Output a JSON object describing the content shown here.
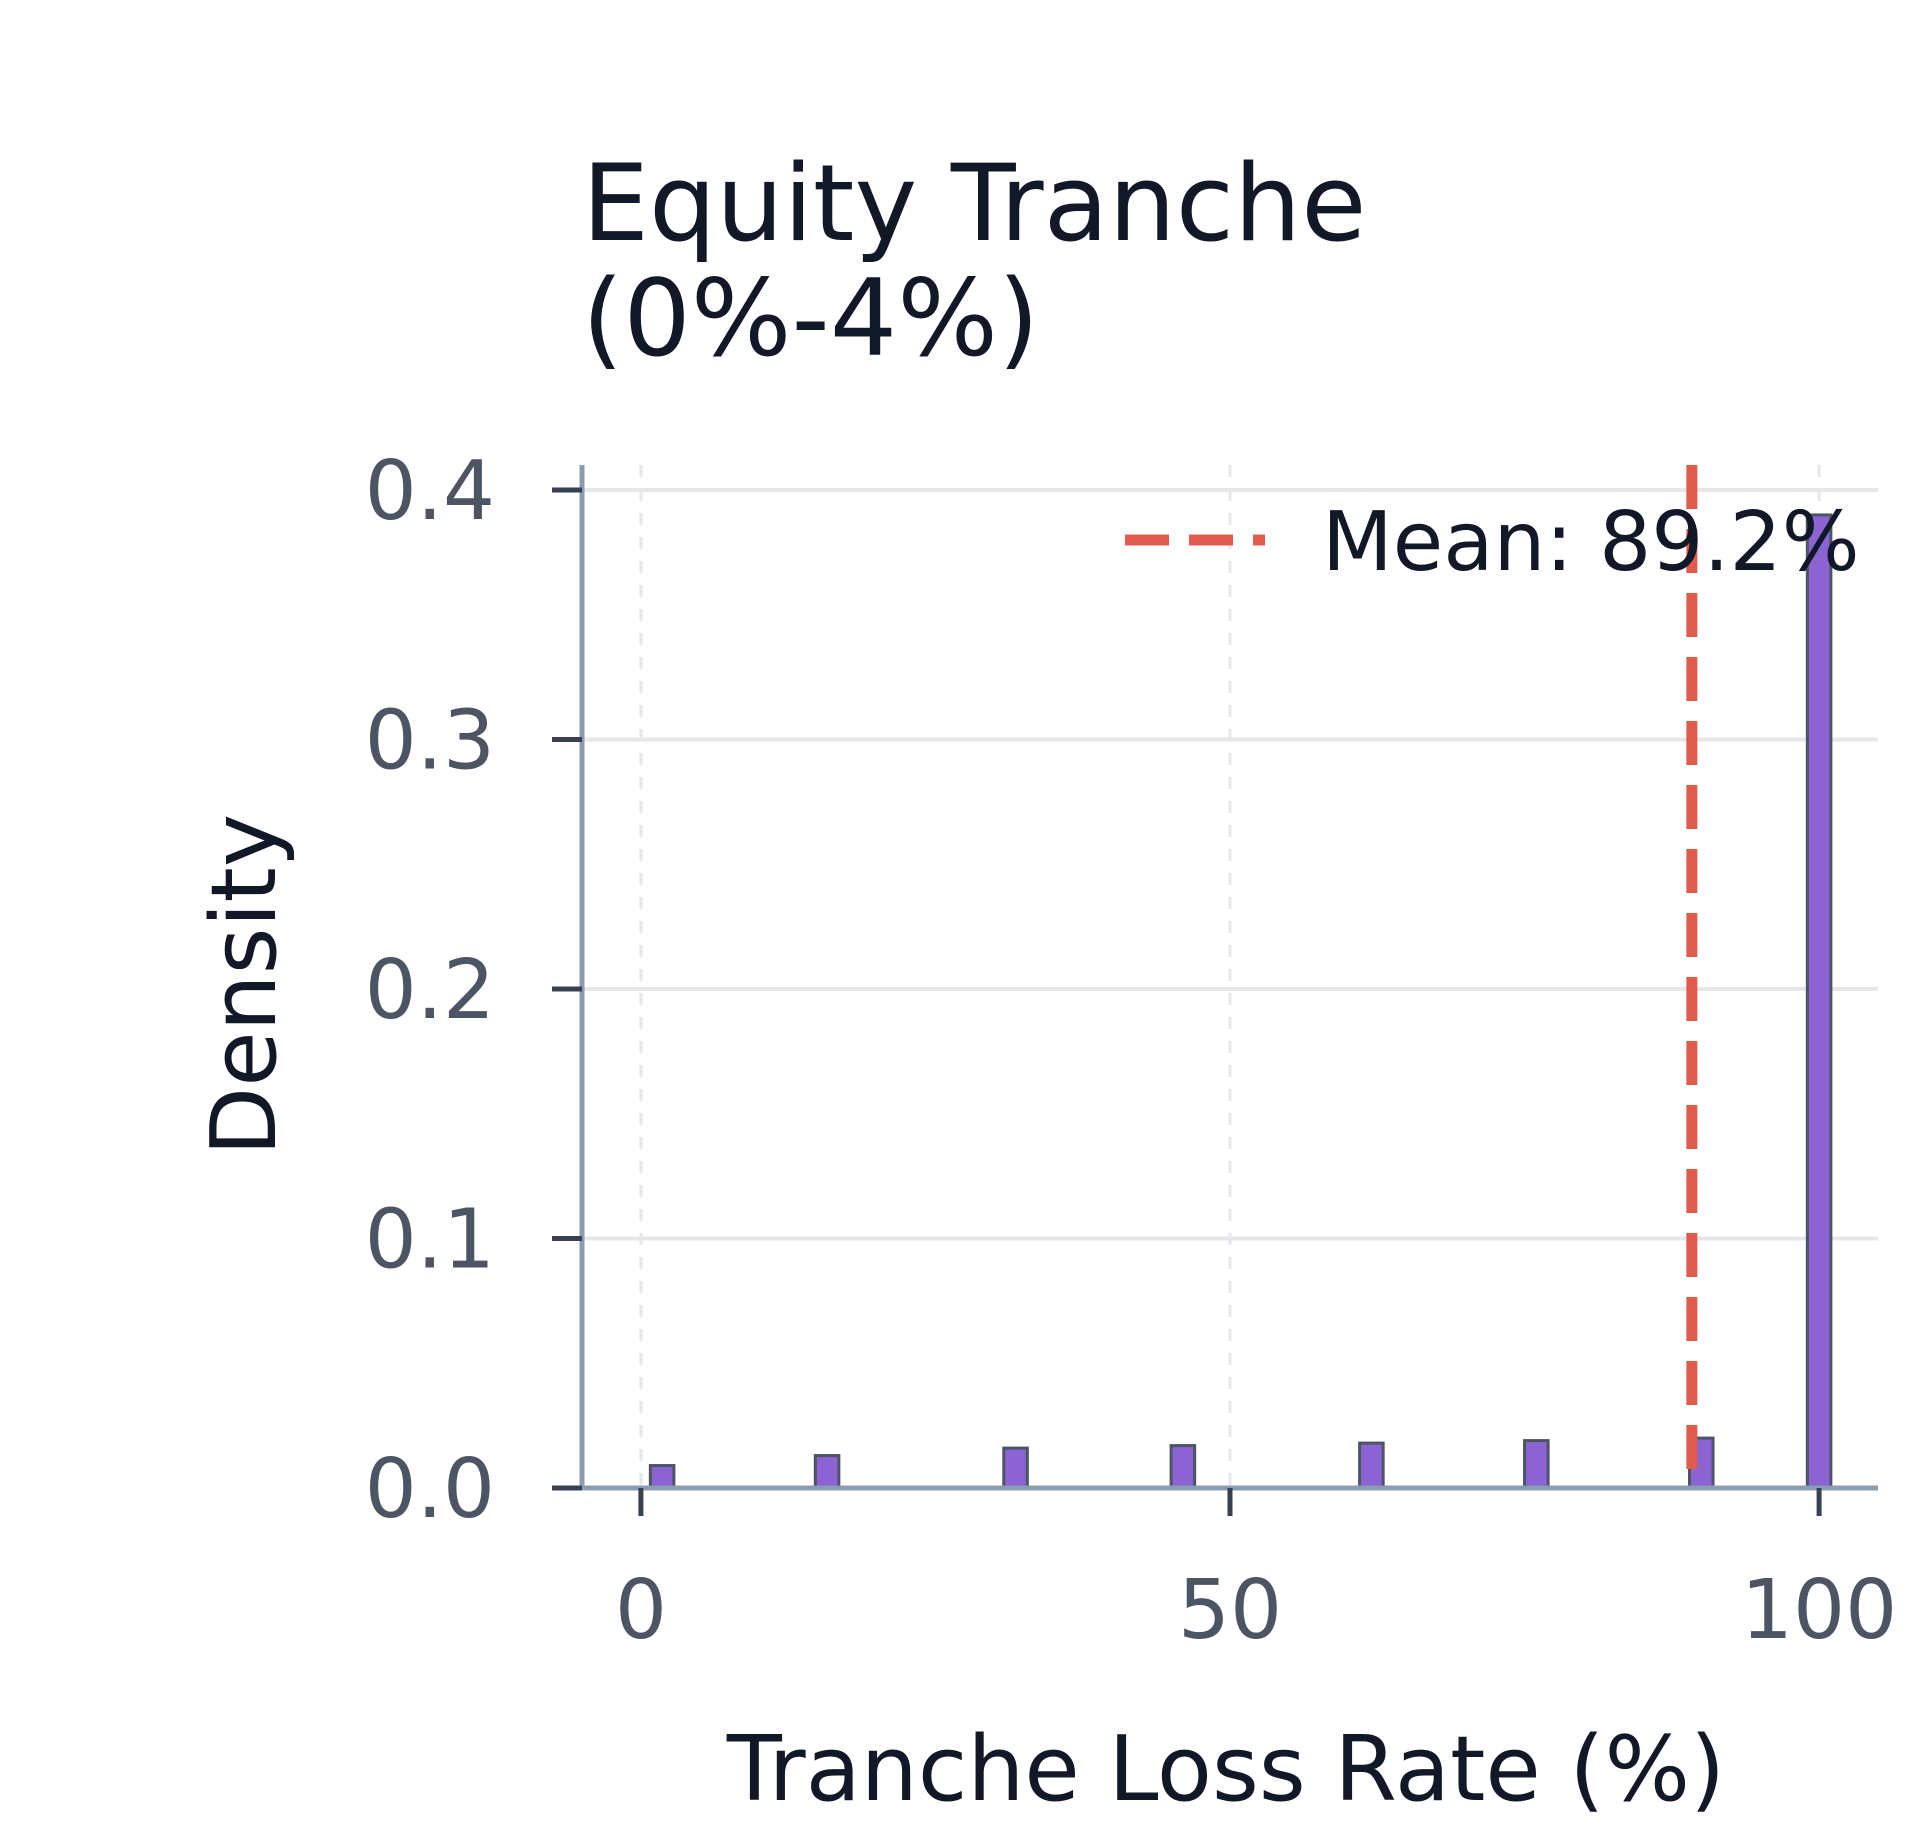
{
  "chart_data": {
    "type": "bar",
    "title_lines": [
      "Equity Tranche",
      "(0%-4%)"
    ],
    "xlabel": "Tranche Loss Rate (%)",
    "ylabel": "Density",
    "xlim": [
      -5,
      105
    ],
    "ylim": [
      0,
      0.4
    ],
    "x_ticks": [
      0,
      50,
      100
    ],
    "x_tick_labels": [
      "0",
      "50",
      "100"
    ],
    "y_ticks": [
      0.0,
      0.1,
      0.2,
      0.3,
      0.4
    ],
    "y_tick_labels": [
      "0.0",
      "0.1",
      "0.2",
      "0.3",
      "0.4"
    ],
    "grid": true,
    "legend_position": "top-right",
    "bin_width": 2,
    "bars": [
      {
        "x": 0.8,
        "density": 0.009
      },
      {
        "x": 14.8,
        "density": 0.013
      },
      {
        "x": 30.8,
        "density": 0.016
      },
      {
        "x": 45.0,
        "density": 0.017
      },
      {
        "x": 61.0,
        "density": 0.018
      },
      {
        "x": 75.0,
        "density": 0.019
      },
      {
        "x": 89.0,
        "density": 0.02
      },
      {
        "x": 99.0,
        "density": 0.39
      }
    ],
    "mean_line": {
      "value": 89.2,
      "label": "Mean: 89.2%"
    },
    "colors": {
      "bar_fill": "#8b63d2",
      "bar_stroke": "#4b5563",
      "mean_line": "#e05a4e",
      "axis": "#8a9bb4",
      "grid": "#e5e7eb",
      "tick_mark": "#374151"
    }
  }
}
